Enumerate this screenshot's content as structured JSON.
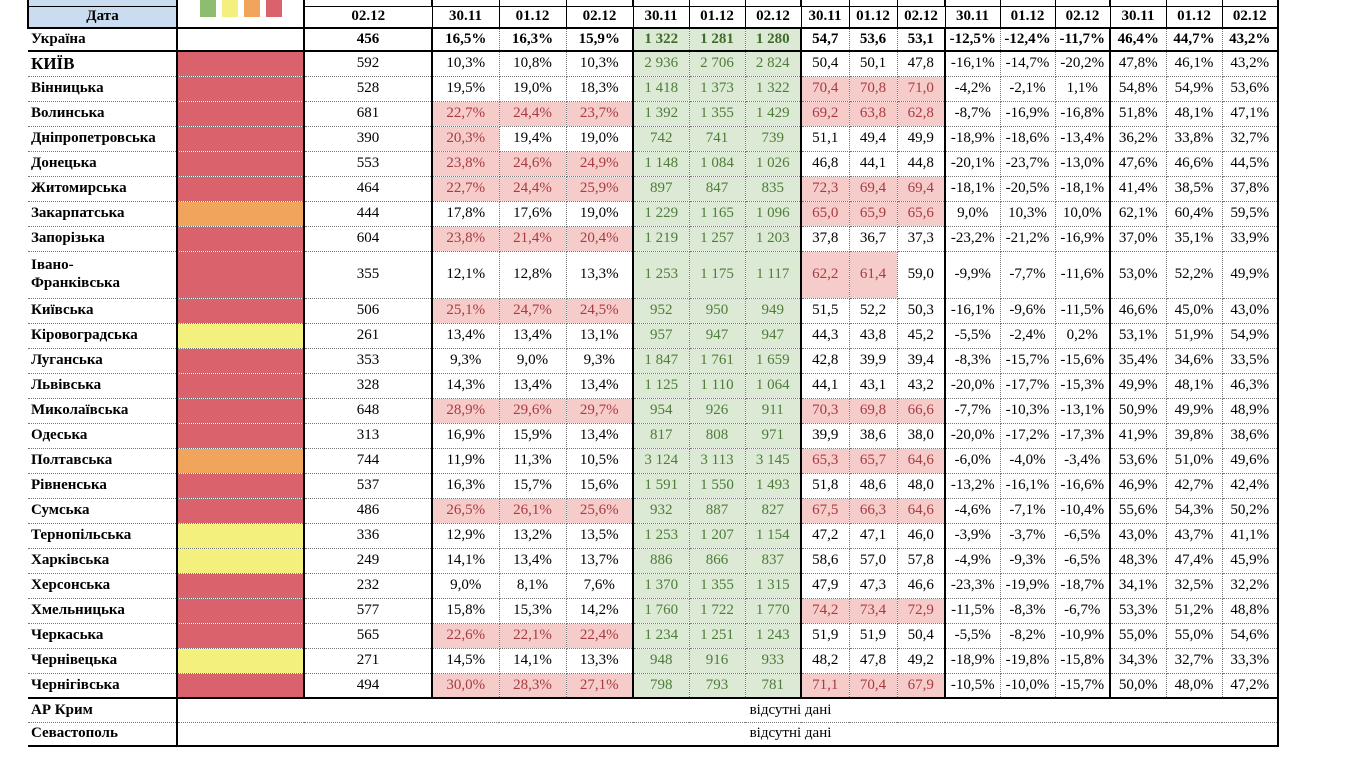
{
  "table_title_note": "fragment of regional report table, top header row cut off",
  "columns": {
    "region_header": "Дата",
    "groups": [
      {
        "dates": [
          "02.12"
        ]
      },
      {
        "dates": [
          "30.11",
          "01.12",
          "02.12"
        ]
      },
      {
        "dates": [
          "30.11",
          "01.12",
          "02.12"
        ]
      },
      {
        "dates": [
          "30.11",
          "01.12",
          "02.12"
        ]
      },
      {
        "dates": [
          "30.11",
          "01.12",
          "02.12"
        ]
      },
      {
        "dates": [
          "30.11",
          "01.12",
          "02.12"
        ]
      }
    ]
  },
  "legend_squares": [
    "green",
    "yellow",
    "orange",
    "red"
  ],
  "colors": {
    "header_blue": "#C9DCF0",
    "risk_red": "#D9626C",
    "risk_orange": "#F1A45C",
    "risk_yellow": "#F3F07E",
    "legend_green": "#8EBD6F",
    "highlight_bg": "#F6CCCB",
    "highlight_text": "#A83B40",
    "green_bg": "#DCEAD5",
    "green_text": "#4E7C38"
  },
  "missing_text": "відсутні дані",
  "rows": [
    {
      "name": "Україна",
      "bold_row": true,
      "color": "none",
      "num": "456",
      "pct": [
        "16,5%",
        "16,3%",
        "15,9%"
      ],
      "pct_hl": [
        0,
        0,
        0
      ],
      "green": [
        "1 322",
        "1 281",
        "1 280"
      ],
      "dec": [
        "54,7",
        "53,6",
        "53,1"
      ],
      "dec_hl": [
        0,
        0,
        0
      ],
      "neg": [
        "-12,5%",
        "-12,4%",
        "-11,7%"
      ],
      "last": [
        "46,4%",
        "44,7%",
        "43,2%"
      ]
    },
    {
      "name": "КИЇВ",
      "caps": true,
      "color": "red",
      "num": "592",
      "pct": [
        "10,3%",
        "10,8%",
        "10,3%"
      ],
      "pct_hl": [
        0,
        0,
        0
      ],
      "green": [
        "2 936",
        "2 706",
        "2 824"
      ],
      "dec": [
        "50,4",
        "50,1",
        "47,8"
      ],
      "dec_hl": [
        0,
        0,
        0
      ],
      "neg": [
        "-16,1%",
        "-14,7%",
        "-20,2%"
      ],
      "last": [
        "47,8%",
        "46,1%",
        "43,2%"
      ]
    },
    {
      "name": "Вінницька",
      "color": "red",
      "num": "528",
      "pct": [
        "19,5%",
        "19,0%",
        "18,3%"
      ],
      "pct_hl": [
        0,
        0,
        0
      ],
      "green": [
        "1 418",
        "1 373",
        "1 322"
      ],
      "dec": [
        "70,4",
        "70,8",
        "71,0"
      ],
      "dec_hl": [
        1,
        1,
        1
      ],
      "neg": [
        "-4,2%",
        "-2,1%",
        "1,1%"
      ],
      "last": [
        "54,8%",
        "54,9%",
        "53,6%"
      ]
    },
    {
      "name": "Волинська",
      "color": "red",
      "num": "681",
      "pct": [
        "22,7%",
        "24,4%",
        "23,7%"
      ],
      "pct_hl": [
        1,
        1,
        1
      ],
      "green": [
        "1 392",
        "1 355",
        "1 429"
      ],
      "dec": [
        "69,2",
        "63,8",
        "62,8"
      ],
      "dec_hl": [
        1,
        1,
        1
      ],
      "neg": [
        "-8,7%",
        "-16,9%",
        "-16,8%"
      ],
      "last": [
        "51,8%",
        "48,1%",
        "47,1%"
      ]
    },
    {
      "name": "Дніпропетровська",
      "color": "red",
      "num": "390",
      "pct": [
        "20,3%",
        "19,4%",
        "19,0%"
      ],
      "pct_hl": [
        1,
        0,
        0
      ],
      "green": [
        "742",
        "741",
        "739"
      ],
      "dec": [
        "51,1",
        "49,4",
        "49,9"
      ],
      "dec_hl": [
        0,
        0,
        0
      ],
      "neg": [
        "-18,9%",
        "-18,6%",
        "-13,4%"
      ],
      "last": [
        "36,2%",
        "33,8%",
        "32,7%"
      ]
    },
    {
      "name": "Донецька",
      "color": "red",
      "num": "553",
      "pct": [
        "23,8%",
        "24,6%",
        "24,9%"
      ],
      "pct_hl": [
        1,
        1,
        1
      ],
      "green": [
        "1 148",
        "1 084",
        "1 026"
      ],
      "dec": [
        "46,8",
        "44,1",
        "44,8"
      ],
      "dec_hl": [
        0,
        0,
        0
      ],
      "neg": [
        "-20,1%",
        "-23,7%",
        "-13,0%"
      ],
      "last": [
        "47,6%",
        "46,6%",
        "44,5%"
      ]
    },
    {
      "name": "Житомирська",
      "color": "red",
      "num": "464",
      "pct": [
        "22,7%",
        "24,4%",
        "25,9%"
      ],
      "pct_hl": [
        1,
        1,
        1
      ],
      "green": [
        "897",
        "847",
        "835"
      ],
      "dec": [
        "72,3",
        "69,4",
        "69,4"
      ],
      "dec_hl": [
        1,
        1,
        1
      ],
      "neg": [
        "-18,1%",
        "-20,5%",
        "-18,1%"
      ],
      "last": [
        "41,4%",
        "38,5%",
        "37,8%"
      ]
    },
    {
      "name": "Закарпатська",
      "color": "orange",
      "num": "444",
      "pct": [
        "17,8%",
        "17,6%",
        "19,0%"
      ],
      "pct_hl": [
        0,
        0,
        0
      ],
      "green": [
        "1 229",
        "1 165",
        "1 096"
      ],
      "dec": [
        "65,0",
        "65,9",
        "65,6"
      ],
      "dec_hl": [
        1,
        1,
        1
      ],
      "neg": [
        "9,0%",
        "10,3%",
        "10,0%"
      ],
      "last": [
        "62,1%",
        "60,4%",
        "59,5%"
      ]
    },
    {
      "name": "Запорізька",
      "color": "red",
      "num": "604",
      "pct": [
        "23,8%",
        "21,4%",
        "20,4%"
      ],
      "pct_hl": [
        1,
        1,
        1
      ],
      "green": [
        "1 219",
        "1 257",
        "1 203"
      ],
      "dec": [
        "37,8",
        "36,7",
        "37,3"
      ],
      "dec_hl": [
        0,
        0,
        0
      ],
      "neg": [
        "-23,2%",
        "-21,2%",
        "-16,9%"
      ],
      "last": [
        "37,0%",
        "35,1%",
        "33,9%"
      ]
    },
    {
      "name": "Івано-\nФранківська",
      "wrap": true,
      "color": "red",
      "num": "355",
      "pct": [
        "12,1%",
        "12,8%",
        "13,3%"
      ],
      "pct_hl": [
        0,
        0,
        0
      ],
      "green": [
        "1 253",
        "1 175",
        "1 117"
      ],
      "dec": [
        "62,2",
        "61,4",
        "59,0"
      ],
      "dec_hl": [
        1,
        1,
        0
      ],
      "neg": [
        "-9,9%",
        "-7,7%",
        "-11,6%"
      ],
      "last": [
        "53,0%",
        "52,2%",
        "49,9%"
      ]
    },
    {
      "name": "Київська",
      "color": "red",
      "num": "506",
      "pct": [
        "25,1%",
        "24,7%",
        "24,5%"
      ],
      "pct_hl": [
        1,
        1,
        1
      ],
      "green": [
        "952",
        "950",
        "949"
      ],
      "dec": [
        "51,5",
        "52,2",
        "50,3"
      ],
      "dec_hl": [
        0,
        0,
        0
      ],
      "neg": [
        "-16,1%",
        "-9,6%",
        "-11,5%"
      ],
      "last": [
        "46,6%",
        "45,0%",
        "43,0%"
      ]
    },
    {
      "name": "Кіровоградська",
      "color": "yellow",
      "num": "261",
      "pct": [
        "13,4%",
        "13,4%",
        "13,1%"
      ],
      "pct_hl": [
        0,
        0,
        0
      ],
      "green": [
        "957",
        "947",
        "947"
      ],
      "dec": [
        "44,3",
        "43,8",
        "45,2"
      ],
      "dec_hl": [
        0,
        0,
        0
      ],
      "neg": [
        "-5,5%",
        "-2,4%",
        "0,2%"
      ],
      "last": [
        "53,1%",
        "51,9%",
        "54,9%"
      ]
    },
    {
      "name": "Луганська",
      "color": "red",
      "num": "353",
      "pct": [
        "9,3%",
        "9,0%",
        "9,3%"
      ],
      "pct_hl": [
        0,
        0,
        0
      ],
      "green": [
        "1 847",
        "1 761",
        "1 659"
      ],
      "dec": [
        "42,8",
        "39,9",
        "39,4"
      ],
      "dec_hl": [
        0,
        0,
        0
      ],
      "neg": [
        "-8,3%",
        "-15,7%",
        "-15,6%"
      ],
      "last": [
        "35,4%",
        "34,6%",
        "33,5%"
      ]
    },
    {
      "name": "Львівська",
      "color": "red",
      "num": "328",
      "pct": [
        "14,3%",
        "13,4%",
        "13,4%"
      ],
      "pct_hl": [
        0,
        0,
        0
      ],
      "green": [
        "1 125",
        "1 110",
        "1 064"
      ],
      "dec": [
        "44,1",
        "43,1",
        "43,2"
      ],
      "dec_hl": [
        0,
        0,
        0
      ],
      "neg": [
        "-20,0%",
        "-17,7%",
        "-15,3%"
      ],
      "last": [
        "49,9%",
        "48,1%",
        "46,3%"
      ]
    },
    {
      "name": "Миколаївська",
      "color": "red",
      "num": "648",
      "pct": [
        "28,9%",
        "29,6%",
        "29,7%"
      ],
      "pct_hl": [
        1,
        1,
        1
      ],
      "green": [
        "954",
        "926",
        "911"
      ],
      "dec": [
        "70,3",
        "69,8",
        "66,6"
      ],
      "dec_hl": [
        1,
        1,
        1
      ],
      "neg": [
        "-7,7%",
        "-10,3%",
        "-13,1%"
      ],
      "last": [
        "50,9%",
        "49,9%",
        "48,9%"
      ]
    },
    {
      "name": "Одеська",
      "color": "red",
      "num": "313",
      "pct": [
        "16,9%",
        "15,9%",
        "13,4%"
      ],
      "pct_hl": [
        0,
        0,
        0
      ],
      "green": [
        "817",
        "808",
        "971"
      ],
      "dec": [
        "39,9",
        "38,6",
        "38,0"
      ],
      "dec_hl": [
        0,
        0,
        0
      ],
      "neg": [
        "-20,0%",
        "-17,2%",
        "-17,3%"
      ],
      "last": [
        "41,9%",
        "39,8%",
        "38,6%"
      ]
    },
    {
      "name": "Полтавська",
      "color": "orange",
      "num": "744",
      "pct": [
        "11,9%",
        "11,3%",
        "10,5%"
      ],
      "pct_hl": [
        0,
        0,
        0
      ],
      "green": [
        "3 124",
        "3 113",
        "3 145"
      ],
      "dec": [
        "65,3",
        "65,7",
        "64,6"
      ],
      "dec_hl": [
        1,
        1,
        1
      ],
      "neg": [
        "-6,0%",
        "-4,0%",
        "-3,4%"
      ],
      "last": [
        "53,6%",
        "51,0%",
        "49,6%"
      ]
    },
    {
      "name": "Рівненська",
      "color": "red",
      "num": "537",
      "pct": [
        "16,3%",
        "15,7%",
        "15,6%"
      ],
      "pct_hl": [
        0,
        0,
        0
      ],
      "green": [
        "1 591",
        "1 550",
        "1 493"
      ],
      "dec": [
        "51,8",
        "48,6",
        "48,0"
      ],
      "dec_hl": [
        0,
        0,
        0
      ],
      "neg": [
        "-13,2%",
        "-16,1%",
        "-16,6%"
      ],
      "last": [
        "46,9%",
        "42,7%",
        "42,4%"
      ]
    },
    {
      "name": "Сумська",
      "color": "red",
      "num": "486",
      "pct": [
        "26,5%",
        "26,1%",
        "25,6%"
      ],
      "pct_hl": [
        1,
        1,
        1
      ],
      "green": [
        "932",
        "887",
        "827"
      ],
      "dec": [
        "67,5",
        "66,3",
        "64,6"
      ],
      "dec_hl": [
        1,
        1,
        1
      ],
      "neg": [
        "-4,6%",
        "-7,1%",
        "-10,4%"
      ],
      "last": [
        "55,6%",
        "54,3%",
        "50,2%"
      ]
    },
    {
      "name": "Тернопільська",
      "color": "yellow",
      "num": "336",
      "pct": [
        "12,9%",
        "13,2%",
        "13,5%"
      ],
      "pct_hl": [
        0,
        0,
        0
      ],
      "green": [
        "1 253",
        "1 207",
        "1 154"
      ],
      "dec": [
        "47,2",
        "47,1",
        "46,0"
      ],
      "dec_hl": [
        0,
        0,
        0
      ],
      "neg": [
        "-3,9%",
        "-3,7%",
        "-6,5%"
      ],
      "last": [
        "43,0%",
        "43,7%",
        "41,1%"
      ]
    },
    {
      "name": "Харківська",
      "color": "yellow",
      "num": "249",
      "pct": [
        "14,1%",
        "13,4%",
        "13,7%"
      ],
      "pct_hl": [
        0,
        0,
        0
      ],
      "green": [
        "886",
        "866",
        "837"
      ],
      "dec": [
        "58,6",
        "57,0",
        "57,8"
      ],
      "dec_hl": [
        0,
        0,
        0
      ],
      "neg": [
        "-4,9%",
        "-9,3%",
        "-6,5%"
      ],
      "last": [
        "48,3%",
        "47,4%",
        "45,9%"
      ]
    },
    {
      "name": "Херсонська",
      "color": "red",
      "num": "232",
      "pct": [
        "9,0%",
        "8,1%",
        "7,6%"
      ],
      "pct_hl": [
        0,
        0,
        0
      ],
      "green": [
        "1 370",
        "1 355",
        "1 315"
      ],
      "dec": [
        "47,9",
        "47,3",
        "46,6"
      ],
      "dec_hl": [
        0,
        0,
        0
      ],
      "neg": [
        "-23,3%",
        "-19,9%",
        "-18,7%"
      ],
      "last": [
        "34,1%",
        "32,5%",
        "32,2%"
      ]
    },
    {
      "name": "Хмельницька",
      "color": "red",
      "num": "577",
      "pct": [
        "15,8%",
        "15,3%",
        "14,2%"
      ],
      "pct_hl": [
        0,
        0,
        0
      ],
      "green": [
        "1 760",
        "1 722",
        "1 770"
      ],
      "dec": [
        "74,2",
        "73,4",
        "72,9"
      ],
      "dec_hl": [
        1,
        1,
        1
      ],
      "neg": [
        "-11,5%",
        "-8,3%",
        "-6,7%"
      ],
      "last": [
        "53,3%",
        "51,2%",
        "48,8%"
      ]
    },
    {
      "name": "Черкаська",
      "color": "red",
      "num": "565",
      "pct": [
        "22,6%",
        "22,1%",
        "22,4%"
      ],
      "pct_hl": [
        1,
        1,
        1
      ],
      "green": [
        "1 234",
        "1 251",
        "1 243"
      ],
      "dec": [
        "51,9",
        "51,9",
        "50,4"
      ],
      "dec_hl": [
        0,
        0,
        0
      ],
      "neg": [
        "-5,5%",
        "-8,2%",
        "-10,9%"
      ],
      "last": [
        "55,0%",
        "55,0%",
        "54,6%"
      ]
    },
    {
      "name": "Чернівецька",
      "color": "yellow",
      "num": "271",
      "pct": [
        "14,5%",
        "14,1%",
        "13,3%"
      ],
      "pct_hl": [
        0,
        0,
        0
      ],
      "green": [
        "948",
        "916",
        "933"
      ],
      "dec": [
        "48,2",
        "47,8",
        "49,2"
      ],
      "dec_hl": [
        0,
        0,
        0
      ],
      "neg": [
        "-18,9%",
        "-19,8%",
        "-15,8%"
      ],
      "last": [
        "34,3%",
        "32,7%",
        "33,3%"
      ]
    },
    {
      "name": "Чернігівська",
      "last_region": true,
      "color": "red",
      "num": "494",
      "pct": [
        "30,0%",
        "28,3%",
        "27,1%"
      ],
      "pct_hl": [
        1,
        1,
        1
      ],
      "green": [
        "798",
        "793",
        "781"
      ],
      "dec": [
        "71,1",
        "70,4",
        "67,9"
      ],
      "dec_hl": [
        1,
        1,
        1
      ],
      "neg": [
        "-10,5%",
        "-10,0%",
        "-15,7%"
      ],
      "last": [
        "50,0%",
        "48,0%",
        "47,2%"
      ]
    }
  ],
  "footer_rows": [
    {
      "name": "АР Крим",
      "value": "відсутні дані"
    },
    {
      "name": "Севастополь",
      "value": "відсутні дані"
    }
  ]
}
